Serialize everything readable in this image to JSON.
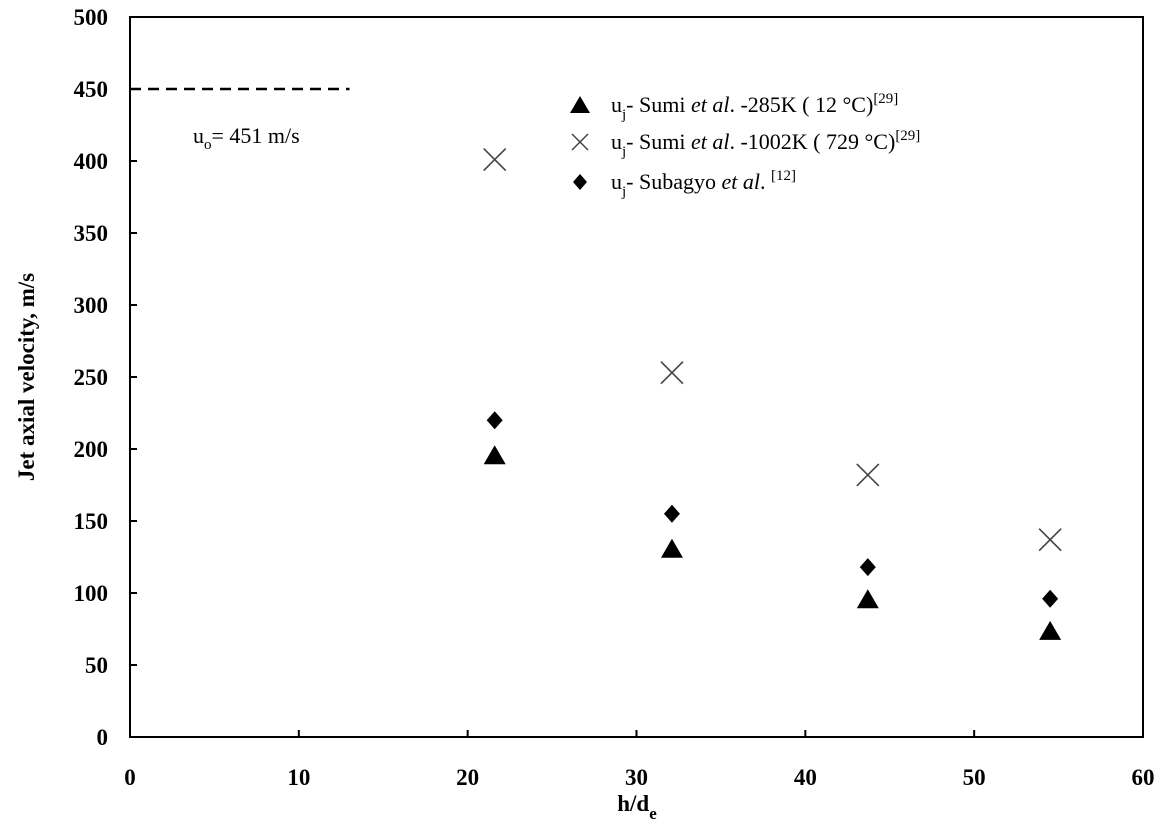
{
  "chart_data": {
    "type": "scatter",
    "title": "",
    "xlabel": {
      "main": "h/d",
      "sub": "e"
    },
    "ylabel": "Jet axial velocity, m/s",
    "xlim": [
      0,
      60
    ],
    "ylim": [
      0,
      500
    ],
    "xticks": [
      "0",
      "10",
      "20",
      "30",
      "40",
      "50",
      "60"
    ],
    "yticks": [
      "0",
      "50",
      "100",
      "150",
      "200",
      "250",
      "300",
      "350",
      "400",
      "450",
      "500"
    ],
    "grid": false,
    "legend_position": "top-right",
    "reference_line": {
      "y": 450,
      "x_range": [
        0,
        13
      ],
      "style": "dashed"
    },
    "annotation": {
      "main": "u",
      "sub": "o",
      "rest": "= 451 m/s"
    },
    "series": [
      {
        "marker": "triangle",
        "legend": {
          "u": "u",
          "sub": "j",
          "pre": "- Sumi ",
          "italic": "et al",
          "post": ". -285K ( 12 °C)",
          "ref": "[29]"
        },
        "x": [
          21.6,
          32.1,
          43.7,
          54.5
        ],
        "y": [
          195,
          130,
          95,
          73
        ]
      },
      {
        "marker": "x",
        "legend": {
          "u": "u",
          "sub": "j",
          "pre": "- Sumi ",
          "italic": "et al",
          "post": ". -1002K ( 729 °C)",
          "ref": "[29]"
        },
        "x": [
          21.6,
          32.1,
          43.7,
          54.5
        ],
        "y": [
          401,
          253,
          182,
          137
        ]
      },
      {
        "marker": "diamond",
        "legend": {
          "u": "u",
          "sub": "j",
          "pre": "- Subagyo ",
          "italic": "et al",
          "post": ". ",
          "ref": "[12]"
        },
        "x": [
          21.6,
          32.1,
          43.7,
          54.5
        ],
        "y": [
          220,
          155,
          118,
          96
        ]
      }
    ]
  }
}
